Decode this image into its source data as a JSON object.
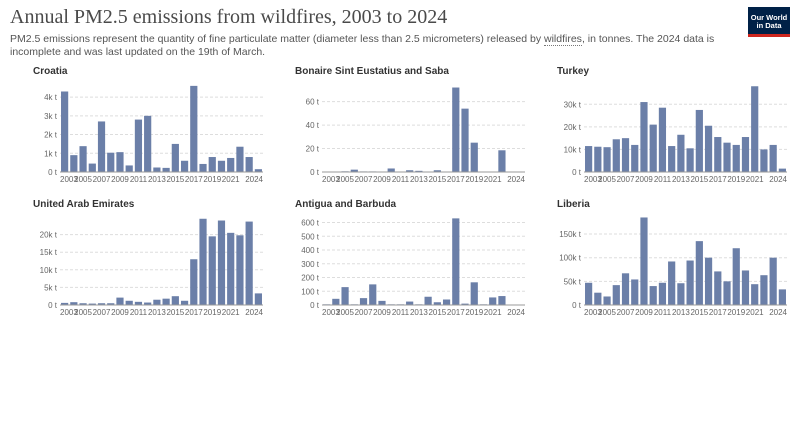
{
  "header": {
    "title": "Annual PM2.5 emissions from wildfires, 2003 to 2024",
    "subtitle_pre": "PM2.5 emissions represent the quantity of fine particulate matter (diameter less than 2.5 micrometers) released by ",
    "subtitle_link": "wildfires",
    "subtitle_post": ", in tonnes. The 2024 data is incomplete and was last updated on the 19th of March."
  },
  "logo": {
    "line1": "Our World",
    "line2": "in Data",
    "bg": "#002147",
    "accent": "#ce261e"
  },
  "bar_color": "#6b7fa8",
  "chart_data": [
    {
      "type": "bar",
      "title": "Croatia",
      "categories": [
        2003,
        2004,
        2005,
        2006,
        2007,
        2008,
        2009,
        2010,
        2011,
        2012,
        2013,
        2014,
        2015,
        2016,
        2017,
        2018,
        2019,
        2020,
        2021,
        2022,
        2023,
        2024
      ],
      "values": [
        4300,
        900,
        1380,
        450,
        2700,
        1030,
        1060,
        350,
        2800,
        3000,
        240,
        220,
        1500,
        600,
        4600,
        430,
        800,
        600,
        750,
        1350,
        800,
        150
      ],
      "ylim": [
        0,
        4700
      ],
      "yticks": [
        0,
        1000,
        2000,
        3000,
        4000
      ],
      "ytick_labels": [
        "0 t",
        "1k t",
        "2k t",
        "3k t",
        "4k t"
      ],
      "xtick_labels": [
        "2003",
        "2005",
        "2007",
        "2009",
        "2011",
        "2013",
        "2015",
        "2017",
        "2019",
        "2021",
        "2024"
      ],
      "xlabel": "",
      "ylabel": ""
    },
    {
      "type": "bar",
      "title": "Bonaire Sint Eustatius and Saba",
      "categories": [
        2003,
        2004,
        2005,
        2006,
        2007,
        2008,
        2009,
        2010,
        2011,
        2012,
        2013,
        2014,
        2015,
        2016,
        2017,
        2018,
        2019,
        2020,
        2021,
        2022,
        2023,
        2024
      ],
      "values": [
        0,
        0,
        0.6,
        2,
        0.5,
        0.5,
        0,
        3,
        0.4,
        1.5,
        1,
        0.3,
        1.5,
        0.4,
        72,
        54,
        25,
        0,
        0,
        18.5,
        0,
        0
      ],
      "ylim": [
        0,
        75
      ],
      "yticks": [
        0,
        20,
        40,
        60
      ],
      "ytick_labels": [
        "0 t",
        "20 t",
        "40 t",
        "60 t"
      ],
      "xtick_labels": [
        "2003",
        "2005",
        "2007",
        "2009",
        "2011",
        "2013",
        "2015",
        "2017",
        "2019",
        "2021",
        "2024"
      ],
      "xlabel": "",
      "ylabel": ""
    },
    {
      "type": "bar",
      "title": "Turkey",
      "categories": [
        2003,
        2004,
        2005,
        2006,
        2007,
        2008,
        2009,
        2010,
        2011,
        2012,
        2013,
        2014,
        2015,
        2016,
        2017,
        2018,
        2019,
        2020,
        2021,
        2022,
        2023,
        2024
      ],
      "values": [
        11500,
        11200,
        11000,
        14500,
        15000,
        12000,
        31000,
        21000,
        28500,
        11500,
        16500,
        10500,
        27500,
        20500,
        15500,
        13000,
        12000,
        15500,
        38000,
        10000,
        12000,
        1500
      ],
      "ylim": [
        0,
        39000
      ],
      "yticks": [
        0,
        10000,
        20000,
        30000
      ],
      "ytick_labels": [
        "0 t",
        "10k t",
        "20k t",
        "30k t"
      ],
      "xtick_labels": [
        "2003",
        "2005",
        "2007",
        "2009",
        "2011",
        "2013",
        "2015",
        "2017",
        "2019",
        "2021",
        "2024"
      ],
      "xlabel": "",
      "ylabel": ""
    },
    {
      "type": "bar",
      "title": "United Arab Emirates",
      "categories": [
        2003,
        2004,
        2005,
        2006,
        2007,
        2008,
        2009,
        2010,
        2011,
        2012,
        2013,
        2014,
        2015,
        2016,
        2017,
        2018,
        2019,
        2020,
        2021,
        2022,
        2023,
        2024
      ],
      "values": [
        600,
        800,
        500,
        400,
        500,
        500,
        2100,
        1200,
        900,
        700,
        1500,
        1800,
        2500,
        1200,
        13000,
        24500,
        19500,
        24000,
        20500,
        19800,
        23700,
        3300
      ],
      "ylim": [
        0,
        25000
      ],
      "yticks": [
        0,
        5000,
        10000,
        15000,
        20000
      ],
      "ytick_labels": [
        "0 t",
        "5k t",
        "10k t",
        "15k t",
        "20k t"
      ],
      "xtick_labels": [
        "2003",
        "2005",
        "2007",
        "2009",
        "2011",
        "2013",
        "2015",
        "2017",
        "2019",
        "2021",
        "2024"
      ],
      "xlabel": "",
      "ylabel": ""
    },
    {
      "type": "bar",
      "title": "Antigua and Barbuda",
      "categories": [
        2003,
        2004,
        2005,
        2006,
        2007,
        2008,
        2009,
        2010,
        2011,
        2012,
        2013,
        2014,
        2015,
        2016,
        2017,
        2018,
        2019,
        2020,
        2021,
        2022,
        2023,
        2024
      ],
      "values": [
        5,
        45,
        130,
        5,
        50,
        150,
        30,
        5,
        5,
        25,
        5,
        60,
        20,
        40,
        630,
        10,
        165,
        5,
        55,
        65,
        0,
        0
      ],
      "ylim": [
        0,
        640
      ],
      "yticks": [
        0,
        100,
        200,
        300,
        400,
        500,
        600
      ],
      "ytick_labels": [
        "0 t",
        "100 t",
        "200 t",
        "300 t",
        "400 t",
        "500 t",
        "600 t"
      ],
      "xtick_labels": [
        "2003",
        "2005",
        "2007",
        "2009",
        "2011",
        "2013",
        "2015",
        "2017",
        "2019",
        "2021",
        "2024"
      ],
      "xlabel": "",
      "ylabel": ""
    },
    {
      "type": "bar",
      "title": "Liberia",
      "categories": [
        2003,
        2004,
        2005,
        2006,
        2007,
        2008,
        2009,
        2010,
        2011,
        2012,
        2013,
        2014,
        2015,
        2016,
        2017,
        2018,
        2019,
        2020,
        2021,
        2022,
        2023,
        2024
      ],
      "values": [
        47000,
        26000,
        18000,
        42000,
        67000,
        54000,
        185000,
        40000,
        47000,
        92000,
        46000,
        94000,
        135000,
        100000,
        71000,
        50000,
        120000,
        73000,
        44000,
        63000,
        100000,
        33000
      ],
      "ylim": [
        0,
        186000
      ],
      "yticks": [
        0,
        50000,
        100000,
        150000
      ],
      "ytick_labels": [
        "0 t",
        "50k t",
        "100k t",
        "150k t"
      ],
      "xtick_labels": [
        "2003",
        "2005",
        "2007",
        "2009",
        "2011",
        "2013",
        "2015",
        "2017",
        "2019",
        "2021",
        "2024"
      ],
      "xlabel": "",
      "ylabel": ""
    }
  ]
}
